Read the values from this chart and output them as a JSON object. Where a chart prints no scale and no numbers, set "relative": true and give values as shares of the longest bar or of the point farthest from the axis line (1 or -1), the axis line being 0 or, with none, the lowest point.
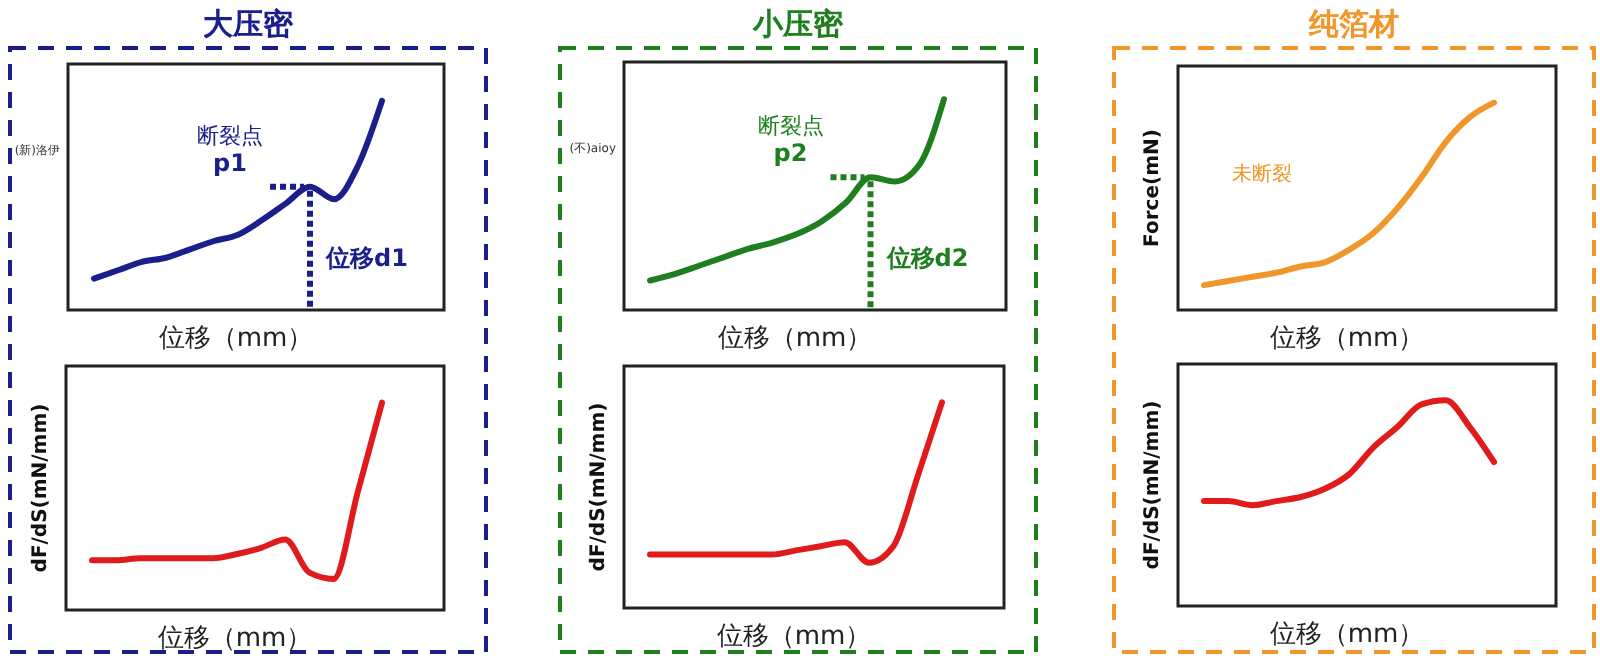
{
  "chart_data": [
    {
      "type": "line",
      "title": "大压密",
      "relative": true,
      "ylabel": "(新)洛伊",
      "xlabel": "位移（mm）",
      "annotations": [
        "断裂点",
        "p1",
        "位移d1"
      ],
      "categories": [
        null,
        null,
        null,
        null,
        null,
        null,
        null,
        null,
        null,
        null,
        null,
        null,
        null
      ],
      "series": [
        {
          "color": "#1a1f8c",
          "values": [
            0.15,
            0.19,
            0.23,
            0.25,
            0.29,
            0.33,
            0.36,
            0.43,
            0.51,
            0.59,
            0.53,
            0.69,
            1
          ]
        }
      ]
    },
    {
      "type": "line",
      "relative": true,
      "ylabel": "dF/dS(mN/mm)",
      "xlabel": "位移（mm）",
      "categories": [
        null,
        null,
        null,
        null,
        null,
        null,
        null,
        null,
        null,
        null,
        null,
        null,
        null
      ],
      "series": [
        {
          "color": "#e01b1b",
          "values": [
            0.24,
            0.24,
            0.25,
            0.25,
            0.25,
            0.25,
            0.27,
            0.3,
            0.34,
            0.18,
            0.15,
            0.57,
            1
          ]
        }
      ]
    },
    {
      "type": "line",
      "title": "小压密",
      "relative": true,
      "ylabel": "(不)aioy",
      "xlabel": "位移（mm）",
      "annotations": [
        "断裂点",
        "p2",
        "位移d2"
      ],
      "categories": [
        null,
        null,
        null,
        null,
        null,
        null,
        null,
        null,
        null,
        null,
        null,
        null,
        null
      ],
      "series": [
        {
          "color": "#1f7f1f",
          "values": [
            0.14,
            0.17,
            0.21,
            0.25,
            0.29,
            0.32,
            0.36,
            0.42,
            0.51,
            0.63,
            0.61,
            0.69,
            1
          ]
        }
      ]
    },
    {
      "type": "line",
      "relative": true,
      "ylabel": "dF/dS(mN/mm)",
      "xlabel": "位移（mm）",
      "categories": [
        null,
        null,
        null,
        null,
        null,
        null,
        null,
        null,
        null,
        null,
        null,
        null,
        null
      ],
      "series": [
        {
          "color": "#e01b1b",
          "values": [
            0.26,
            0.26,
            0.26,
            0.26,
            0.26,
            0.26,
            0.28,
            0.3,
            0.32,
            0.22,
            0.3,
            0.64,
            1
          ]
        }
      ]
    },
    {
      "type": "line",
      "title": "纯箔材",
      "relative": true,
      "ylabel": "Force(mN)",
      "xlabel": "位移（mm）",
      "annotations": [
        "未断裂"
      ],
      "categories": [
        null,
        null,
        null,
        null,
        null,
        null,
        null,
        null,
        null,
        null,
        null,
        null,
        null
      ],
      "series": [
        {
          "color": "#f0962a",
          "values": [
            0.12,
            0.14,
            0.16,
            0.18,
            0.21,
            0.23,
            0.29,
            0.37,
            0.49,
            0.64,
            0.81,
            0.93,
            1
          ]
        }
      ]
    },
    {
      "type": "line",
      "relative": true,
      "ylabel": "dF/dS(mN/mm)",
      "xlabel": "位移（mm）",
      "categories": [
        null,
        null,
        null,
        null,
        null,
        null,
        null,
        null,
        null,
        null,
        null,
        null,
        null
      ],
      "series": [
        {
          "color": "#e01b1b",
          "values": [
            0.51,
            0.51,
            0.49,
            0.51,
            0.53,
            0.57,
            0.64,
            0.77,
            0.87,
            0.98,
            1,
            0.87,
            0.7
          ]
        }
      ]
    }
  ]
}
